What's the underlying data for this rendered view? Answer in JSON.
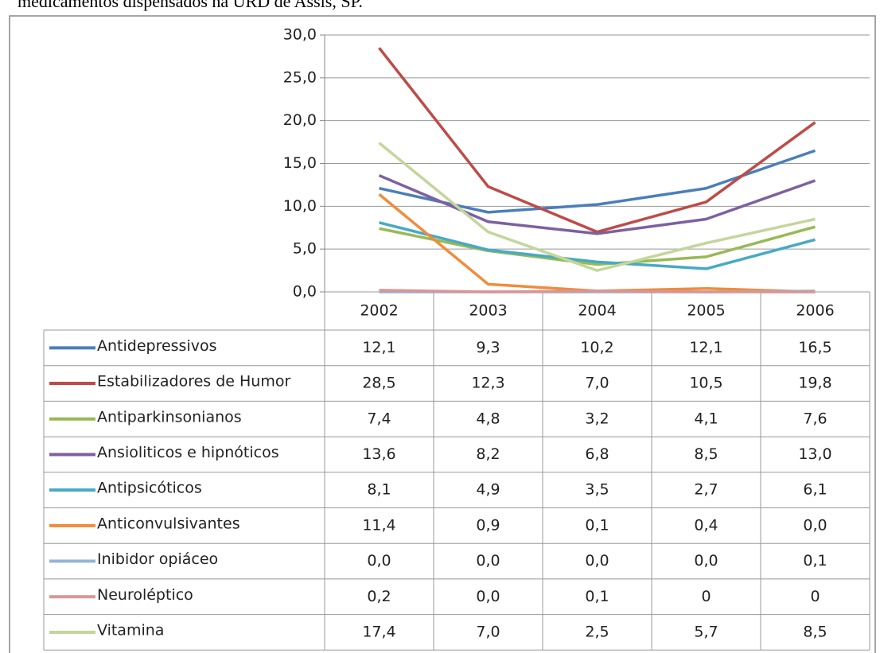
{
  "chart_data": {
    "type": "line",
    "title": "medicamentos dispensados na URD de Assis, SP.",
    "categories": [
      "2002",
      "2003",
      "2004",
      "2005",
      "2006"
    ],
    "ylim": [
      0,
      30
    ],
    "yticks": [
      {
        "value": 0,
        "label": "0,0"
      },
      {
        "value": 5,
        "label": "5,0"
      },
      {
        "value": 10,
        "label": "10,0"
      },
      {
        "value": 15,
        "label": "15,0"
      },
      {
        "value": 20,
        "label": "20,0"
      },
      {
        "value": 25,
        "label": "25,0"
      },
      {
        "value": 30,
        "label": "30,0"
      }
    ],
    "grid": true,
    "series": [
      {
        "name": "Antidepressivos",
        "color": "#4a7ebb",
        "values": [
          12.1,
          9.3,
          10.2,
          12.1,
          16.5
        ],
        "value_labels": [
          "12,1",
          "9,3",
          "10,2",
          "12,1",
          "16,5"
        ]
      },
      {
        "name": "Estabilizadores de Humor",
        "color": "#be4b48",
        "values": [
          28.5,
          12.3,
          7.0,
          10.5,
          19.8
        ],
        "value_labels": [
          "28,5",
          "12,3",
          "7,0",
          "10,5",
          "19,8"
        ]
      },
      {
        "name": "Antiparkinsonianos",
        "color": "#98b954",
        "values": [
          7.4,
          4.8,
          3.2,
          4.1,
          7.6
        ],
        "value_labels": [
          "7,4",
          "4,8",
          "3,2",
          "4,1",
          "7,6"
        ]
      },
      {
        "name": "Ansioliticos e hipnóticos",
        "color": "#7d60a0",
        "values": [
          13.6,
          8.2,
          6.8,
          8.5,
          13.0
        ],
        "value_labels": [
          "13,6",
          "8,2",
          "6,8",
          "8,5",
          "13,0"
        ]
      },
      {
        "name": "Antipsicóticos",
        "color": "#46aac5",
        "values": [
          8.1,
          4.9,
          3.5,
          2.7,
          6.1
        ],
        "value_labels": [
          "8,1",
          "4,9",
          "3,5",
          "2,7",
          "6,1"
        ]
      },
      {
        "name": "Anticonvulsivantes",
        "color": "#f08c3a",
        "values": [
          11.4,
          0.9,
          0.1,
          0.4,
          0.0
        ],
        "value_labels": [
          "11,4",
          "0,9",
          "0,1",
          "0,4",
          "0,0"
        ]
      },
      {
        "name": "Inibidor opiáceo",
        "color": "#95b3d7",
        "values": [
          0.0,
          0.0,
          0.0,
          0.0,
          0.1
        ],
        "value_labels": [
          "0,0",
          "0,0",
          "0,0",
          "0,0",
          "0,1"
        ]
      },
      {
        "name": "Neuroléptico",
        "color": "#d99694",
        "values": [
          0.2,
          0.0,
          0.1,
          0,
          0
        ],
        "value_labels": [
          "0,2",
          "0,0",
          "0,1",
          "0",
          "0"
        ]
      },
      {
        "name": "Vitamina",
        "color": "#c3d69b",
        "values": [
          17.4,
          7.0,
          2.5,
          5.7,
          8.5
        ],
        "value_labels": [
          "17,4",
          "7,0",
          "2,5",
          "5,7",
          "8,5"
        ]
      }
    ]
  }
}
